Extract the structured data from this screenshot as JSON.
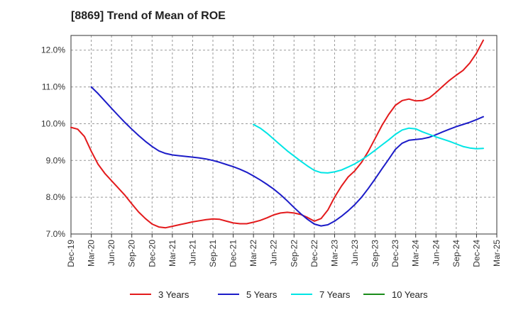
{
  "chart_data": {
    "type": "line",
    "title": "[8869]  Trend of Mean of ROE",
    "xlabel": "",
    "ylabel": "",
    "x_ticks": [
      "Dec-19",
      "Mar-20",
      "Jun-20",
      "Sep-20",
      "Dec-20",
      "Mar-21",
      "Jun-21",
      "Sep-21",
      "Dec-21",
      "Mar-22",
      "Jun-22",
      "Sep-22",
      "Dec-22",
      "Mar-23",
      "Jun-23",
      "Sep-23",
      "Dec-23",
      "Mar-24",
      "Jun-24",
      "Sep-24",
      "Dec-24",
      "Mar-25"
    ],
    "y_ticks": [
      "7.0%",
      "8.0%",
      "9.0%",
      "10.0%",
      "11.0%",
      "12.0%"
    ],
    "ylim": [
      7.0,
      12.4
    ],
    "grid": "horizontal dashed",
    "legend_position": "bottom",
    "series": [
      {
        "name": "3 Years",
        "color": "#e31a1c",
        "points": [
          [
            "Dec-19",
            9.9
          ],
          [
            "Jan-20",
            9.85
          ],
          [
            "Feb-20",
            9.65
          ],
          [
            "Mar-20",
            9.25
          ],
          [
            "Apr-20",
            8.9
          ],
          [
            "May-20",
            8.65
          ],
          [
            "Jun-20",
            8.45
          ],
          [
            "Jul-20",
            8.25
          ],
          [
            "Aug-20",
            8.05
          ],
          [
            "Sep-20",
            7.82
          ],
          [
            "Oct-20",
            7.6
          ],
          [
            "Nov-20",
            7.42
          ],
          [
            "Dec-20",
            7.27
          ],
          [
            "Jan-21",
            7.19
          ],
          [
            "Feb-21",
            7.17
          ],
          [
            "Mar-21",
            7.21
          ],
          [
            "Apr-21",
            7.25
          ],
          [
            "May-21",
            7.29
          ],
          [
            "Jun-21",
            7.33
          ],
          [
            "Jul-21",
            7.36
          ],
          [
            "Aug-21",
            7.39
          ],
          [
            "Sep-21",
            7.41
          ],
          [
            "Oct-21",
            7.4
          ],
          [
            "Nov-21",
            7.35
          ],
          [
            "Dec-21",
            7.3
          ],
          [
            "Jan-22",
            7.28
          ],
          [
            "Feb-22",
            7.28
          ],
          [
            "Mar-22",
            7.32
          ],
          [
            "Apr-22",
            7.37
          ],
          [
            "May-22",
            7.44
          ],
          [
            "Jun-22",
            7.52
          ],
          [
            "Jul-22",
            7.57
          ],
          [
            "Aug-22",
            7.59
          ],
          [
            "Sep-22",
            7.57
          ],
          [
            "Oct-22",
            7.53
          ],
          [
            "Nov-22",
            7.45
          ],
          [
            "Dec-22",
            7.35
          ],
          [
            "Jan-23",
            7.42
          ],
          [
            "Feb-23",
            7.65
          ],
          [
            "Mar-23",
            8.0
          ],
          [
            "Apr-23",
            8.3
          ],
          [
            "May-23",
            8.55
          ],
          [
            "Jun-23",
            8.72
          ],
          [
            "Jul-23",
            8.95
          ],
          [
            "Aug-23",
            9.25
          ],
          [
            "Sep-23",
            9.6
          ],
          [
            "Oct-23",
            9.95
          ],
          [
            "Nov-23",
            10.25
          ],
          [
            "Dec-23",
            10.5
          ],
          [
            "Jan-24",
            10.63
          ],
          [
            "Feb-24",
            10.67
          ],
          [
            "Mar-24",
            10.62
          ],
          [
            "Apr-24",
            10.63
          ],
          [
            "May-24",
            10.7
          ],
          [
            "Jun-24",
            10.85
          ],
          [
            "Jul-24",
            11.02
          ],
          [
            "Aug-24",
            11.18
          ],
          [
            "Sep-24",
            11.32
          ],
          [
            "Oct-24",
            11.45
          ],
          [
            "Nov-24",
            11.65
          ],
          [
            "Dec-24",
            11.92
          ],
          [
            "Jan-25",
            12.27
          ]
        ]
      },
      {
        "name": "5 Years",
        "color": "#1c1cc8",
        "points": [
          [
            "Mar-20",
            11.0
          ],
          [
            "Apr-20",
            10.82
          ],
          [
            "May-20",
            10.62
          ],
          [
            "Jun-20",
            10.42
          ],
          [
            "Jul-20",
            10.22
          ],
          [
            "Aug-20",
            10.03
          ],
          [
            "Sep-20",
            9.85
          ],
          [
            "Oct-20",
            9.68
          ],
          [
            "Nov-20",
            9.52
          ],
          [
            "Dec-20",
            9.38
          ],
          [
            "Jan-21",
            9.26
          ],
          [
            "Feb-21",
            9.19
          ],
          [
            "Mar-21",
            9.15
          ],
          [
            "Apr-21",
            9.13
          ],
          [
            "May-21",
            9.11
          ],
          [
            "Jun-21",
            9.09
          ],
          [
            "Jul-21",
            9.07
          ],
          [
            "Aug-21",
            9.04
          ],
          [
            "Sep-21",
            9.0
          ],
          [
            "Oct-21",
            8.95
          ],
          [
            "Nov-21",
            8.89
          ],
          [
            "Dec-21",
            8.83
          ],
          [
            "Jan-22",
            8.76
          ],
          [
            "Feb-22",
            8.68
          ],
          [
            "Mar-22",
            8.58
          ],
          [
            "Apr-22",
            8.47
          ],
          [
            "May-22",
            8.35
          ],
          [
            "Jun-22",
            8.22
          ],
          [
            "Jul-22",
            8.07
          ],
          [
            "Aug-22",
            7.9
          ],
          [
            "Sep-22",
            7.72
          ],
          [
            "Oct-22",
            7.55
          ],
          [
            "Nov-22",
            7.4
          ],
          [
            "Dec-22",
            7.27
          ],
          [
            "Jan-23",
            7.22
          ],
          [
            "Feb-23",
            7.25
          ],
          [
            "Mar-23",
            7.35
          ],
          [
            "Apr-23",
            7.48
          ],
          [
            "May-23",
            7.63
          ],
          [
            "Jun-23",
            7.8
          ],
          [
            "Jul-23",
            8.0
          ],
          [
            "Aug-23",
            8.24
          ],
          [
            "Sep-23",
            8.5
          ],
          [
            "Oct-23",
            8.77
          ],
          [
            "Nov-23",
            9.03
          ],
          [
            "Dec-23",
            9.3
          ],
          [
            "Jan-24",
            9.47
          ],
          [
            "Feb-24",
            9.55
          ],
          [
            "Mar-24",
            9.57
          ],
          [
            "Apr-24",
            9.59
          ],
          [
            "May-24",
            9.63
          ],
          [
            "Jun-24",
            9.7
          ],
          [
            "Jul-24",
            9.78
          ],
          [
            "Aug-24",
            9.85
          ],
          [
            "Sep-24",
            9.92
          ],
          [
            "Oct-24",
            9.98
          ],
          [
            "Nov-24",
            10.04
          ],
          [
            "Dec-24",
            10.11
          ],
          [
            "Jan-25",
            10.19
          ]
        ]
      },
      {
        "name": "7 Years",
        "color": "#00e5e5",
        "points": [
          [
            "Mar-22",
            9.98
          ],
          [
            "Apr-22",
            9.88
          ],
          [
            "May-22",
            9.74
          ],
          [
            "Jun-22",
            9.58
          ],
          [
            "Jul-22",
            9.42
          ],
          [
            "Aug-22",
            9.26
          ],
          [
            "Sep-22",
            9.12
          ],
          [
            "Oct-22",
            8.98
          ],
          [
            "Nov-22",
            8.85
          ],
          [
            "Dec-22",
            8.73
          ],
          [
            "Jan-23",
            8.67
          ],
          [
            "Feb-23",
            8.66
          ],
          [
            "Mar-23",
            8.69
          ],
          [
            "Apr-23",
            8.74
          ],
          [
            "May-23",
            8.82
          ],
          [
            "Jun-23",
            8.91
          ],
          [
            "Jul-23",
            9.02
          ],
          [
            "Aug-23",
            9.14
          ],
          [
            "Sep-23",
            9.28
          ],
          [
            "Oct-23",
            9.42
          ],
          [
            "Nov-23",
            9.56
          ],
          [
            "Dec-23",
            9.71
          ],
          [
            "Jan-24",
            9.83
          ],
          [
            "Feb-24",
            9.88
          ],
          [
            "Mar-24",
            9.86
          ],
          [
            "Apr-24",
            9.78
          ],
          [
            "May-24",
            9.71
          ],
          [
            "Jun-24",
            9.64
          ],
          [
            "Jul-24",
            9.58
          ],
          [
            "Aug-24",
            9.52
          ],
          [
            "Sep-24",
            9.45
          ],
          [
            "Oct-24",
            9.38
          ],
          [
            "Nov-24",
            9.34
          ],
          [
            "Dec-24",
            9.32
          ],
          [
            "Jan-25",
            9.33
          ]
        ]
      },
      {
        "name": "10 Years",
        "color": "#1a8c1a",
        "points": []
      }
    ]
  }
}
